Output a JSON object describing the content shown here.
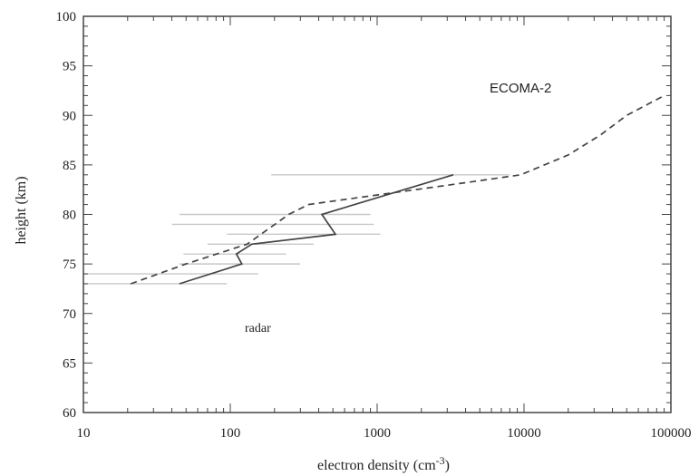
{
  "chart_data": {
    "type": "line",
    "x_scale": "log",
    "xlim": [
      10,
      100000
    ],
    "ylim": [
      60,
      100
    ],
    "xlabel": "electron density (cm",
    "xlabel_exponent": "-3",
    "xlabel_suffix": ")",
    "ylabel": "height (km)",
    "x_tick_labels": [
      "10",
      "100",
      "1000",
      "10000",
      "100000"
    ],
    "y_tick_labels": [
      "60",
      "65",
      "70",
      "75",
      "80",
      "85",
      "90",
      "95",
      "100"
    ],
    "annotations": [
      "ECOMA-2",
      "radar"
    ],
    "series": [
      {
        "style": "solid",
        "color": "#444444",
        "points": [
          [
            45,
            73
          ],
          [
            120,
            75
          ],
          [
            110,
            76
          ],
          [
            140,
            77
          ],
          [
            520,
            78
          ],
          [
            420,
            80
          ],
          [
            3300,
            84
          ]
        ]
      },
      {
        "style": "dashed",
        "color": "#444444",
        "points": [
          [
            21,
            73
          ],
          [
            50,
            75
          ],
          [
            130,
            77
          ],
          [
            250,
            80
          ],
          [
            340,
            81
          ],
          [
            3200,
            83
          ],
          [
            9500,
            84
          ],
          [
            20000,
            86
          ],
          [
            33000,
            88
          ],
          [
            50000,
            90
          ],
          [
            90000,
            92
          ]
        ]
      },
      {
        "style": "errorbars",
        "color": "#c8c8c8",
        "bars": [
          {
            "y": 73,
            "xmin": 10,
            "xmax": 95
          },
          {
            "y": 74,
            "xmin": 10,
            "xmax": 155
          },
          {
            "y": 75,
            "xmin": 45,
            "xmax": 300
          },
          {
            "y": 76,
            "xmin": 48,
            "xmax": 240
          },
          {
            "y": 77,
            "xmin": 70,
            "xmax": 370
          },
          {
            "y": 78,
            "xmin": 95,
            "xmax": 1050
          },
          {
            "y": 79,
            "xmin": 40,
            "xmax": 950
          },
          {
            "y": 80,
            "xmin": 45,
            "xmax": 900
          },
          {
            "y": 84,
            "xmin": 190,
            "xmax": 8000
          }
        ]
      }
    ]
  }
}
